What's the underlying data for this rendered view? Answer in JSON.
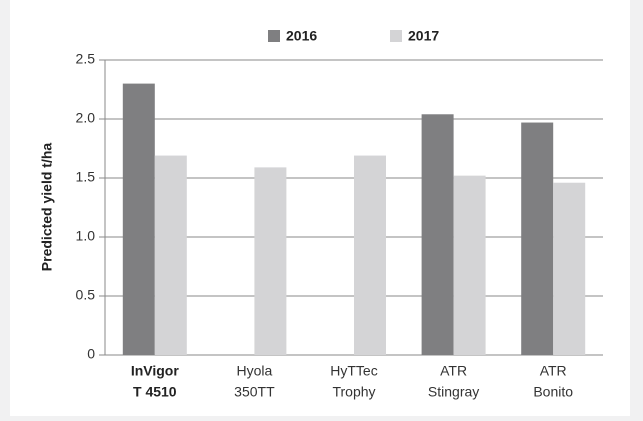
{
  "chart_data": {
    "type": "bar",
    "categories": [
      [
        "InVigor",
        "T 4510"
      ],
      [
        "Hyola",
        "350TT"
      ],
      [
        "HyTTec",
        "Trophy"
      ],
      [
        "ATR",
        "Stingray"
      ],
      [
        "ATR",
        "Bonito"
      ]
    ],
    "series": [
      {
        "name": "2016",
        "color": "#7f7f81",
        "values": [
          2.3,
          null,
          null,
          2.04,
          1.97
        ]
      },
      {
        "name": "2017",
        "color": "#d4d4d6",
        "values": [
          1.69,
          1.59,
          1.69,
          1.52,
          1.46
        ]
      }
    ],
    "ylabel": "Predicted yield t/ha",
    "ylim": [
      0,
      2.5
    ],
    "yticks": [
      0,
      0.5,
      {
        "value": 1,
        "label": "1.0"
      },
      1.5,
      {
        "value": 2,
        "label": "2.0"
      },
      2.5
    ],
    "grid": true,
    "legend": "top"
  }
}
